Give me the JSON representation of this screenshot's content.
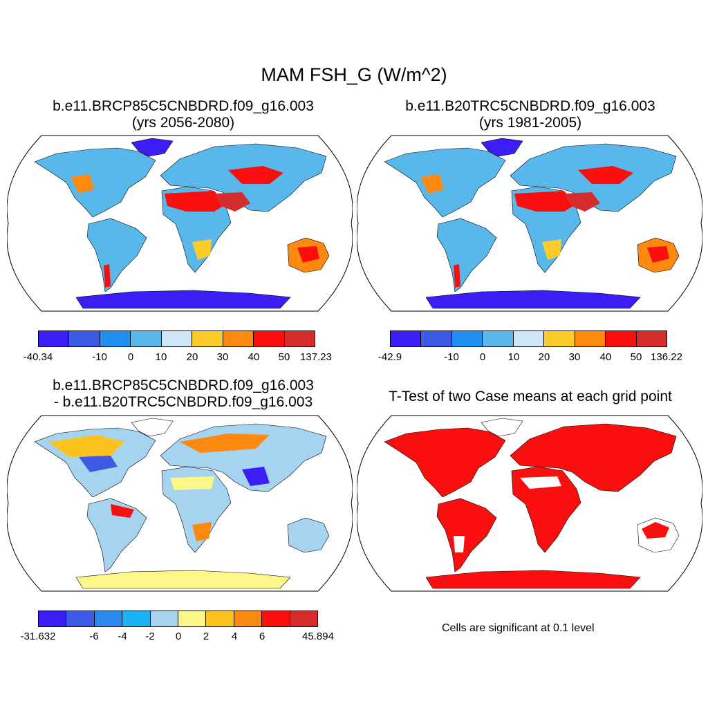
{
  "figure": {
    "title": "MAM FSH_G (W/m^2)"
  },
  "panels": [
    {
      "line1": "b.e11.BRCP85C5CNBDRD.f09_g16.003",
      "line2": "(yrs 2056-2080)",
      "colorbar": {
        "colors": [
          "#3b1ef5",
          "#3c5ae4",
          "#1f8ff2",
          "#58b8ec",
          "#cfe6f8",
          "#fccc2d",
          "#fd8a0e",
          "#fa0e0e",
          "#d52d2d"
        ],
        "labels": [
          "-40.34",
          "-10",
          "0",
          "10",
          "20",
          "30",
          "40",
          "50",
          "137.23"
        ]
      }
    },
    {
      "line1": "b.e11.B20TRC5CNBDRD.f09_g16.003",
      "line2": "(yrs 1981-2005)",
      "colorbar": {
        "colors": [
          "#3b1ef5",
          "#3c5ae4",
          "#1f8ff2",
          "#58b8ec",
          "#cfe6f8",
          "#fccc2d",
          "#fd8a0e",
          "#fa0e0e",
          "#d52d2d"
        ],
        "labels": [
          "-42.9",
          "-10",
          "0",
          "10",
          "20",
          "30",
          "40",
          "50",
          "136.22"
        ]
      }
    },
    {
      "line1": "b.e11.BRCP85C5CNBDRD.f09_g16.003",
      "line2": "- b.e11.B20TRC5CNBDRD.f09_g16.003",
      "colorbar": {
        "colors": [
          "#3b1ef5",
          "#3c5ae4",
          "#2a88ee",
          "#1ab4f5",
          "#a6d3ef",
          "#fdf78a",
          "#fcc21e",
          "#fd8a0e",
          "#fa0e0e",
          "#d52d2d"
        ],
        "labels": [
          "-31.632",
          "-6",
          "-4",
          "-2",
          "0",
          "2",
          "4",
          "6",
          "45.894"
        ]
      }
    },
    {
      "line1": "T-Test of two Case means at each grid point",
      "note": "Cells are significant at 0.1 level"
    }
  ]
}
